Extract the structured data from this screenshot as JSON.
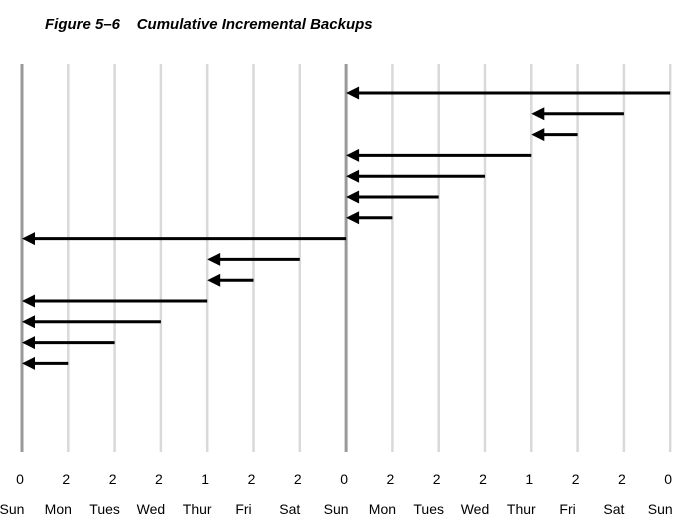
{
  "figure": {
    "title": "Figure 5–6    Cumulative Incremental Backups"
  },
  "levels": [
    "0",
    "2",
    "2",
    "2",
    "1",
    "2",
    "2",
    "0",
    "2",
    "2",
    "2",
    "1",
    "2",
    "2",
    "0"
  ],
  "days": [
    "Sun",
    "Mon",
    "Tues",
    "Wed",
    "Thur",
    "Fri",
    "Sat",
    "Sun",
    "Mon",
    "Tues",
    "Wed",
    "Thur",
    "Fri",
    "Sat",
    "Sun"
  ],
  "major_day_indices": [
    0,
    7
  ],
  "colors": {
    "major_line": "#999999",
    "minor_line": "#d9d9d9",
    "arrow": "#000000"
  },
  "arrows": [
    {
      "from": 14,
      "to": 7
    },
    {
      "from": 13,
      "to": 11
    },
    {
      "from": 12,
      "to": 11
    },
    {
      "from": 11,
      "to": 7
    },
    {
      "from": 10,
      "to": 7
    },
    {
      "from": 9,
      "to": 7
    },
    {
      "from": 8,
      "to": 7
    },
    {
      "from": 7,
      "to": 0
    },
    {
      "from": 6,
      "to": 4
    },
    {
      "from": 5,
      "to": 4
    },
    {
      "from": 4,
      "to": 0
    },
    {
      "from": 3,
      "to": 0
    },
    {
      "from": 2,
      "to": 0
    },
    {
      "from": 1,
      "to": 0
    }
  ]
}
